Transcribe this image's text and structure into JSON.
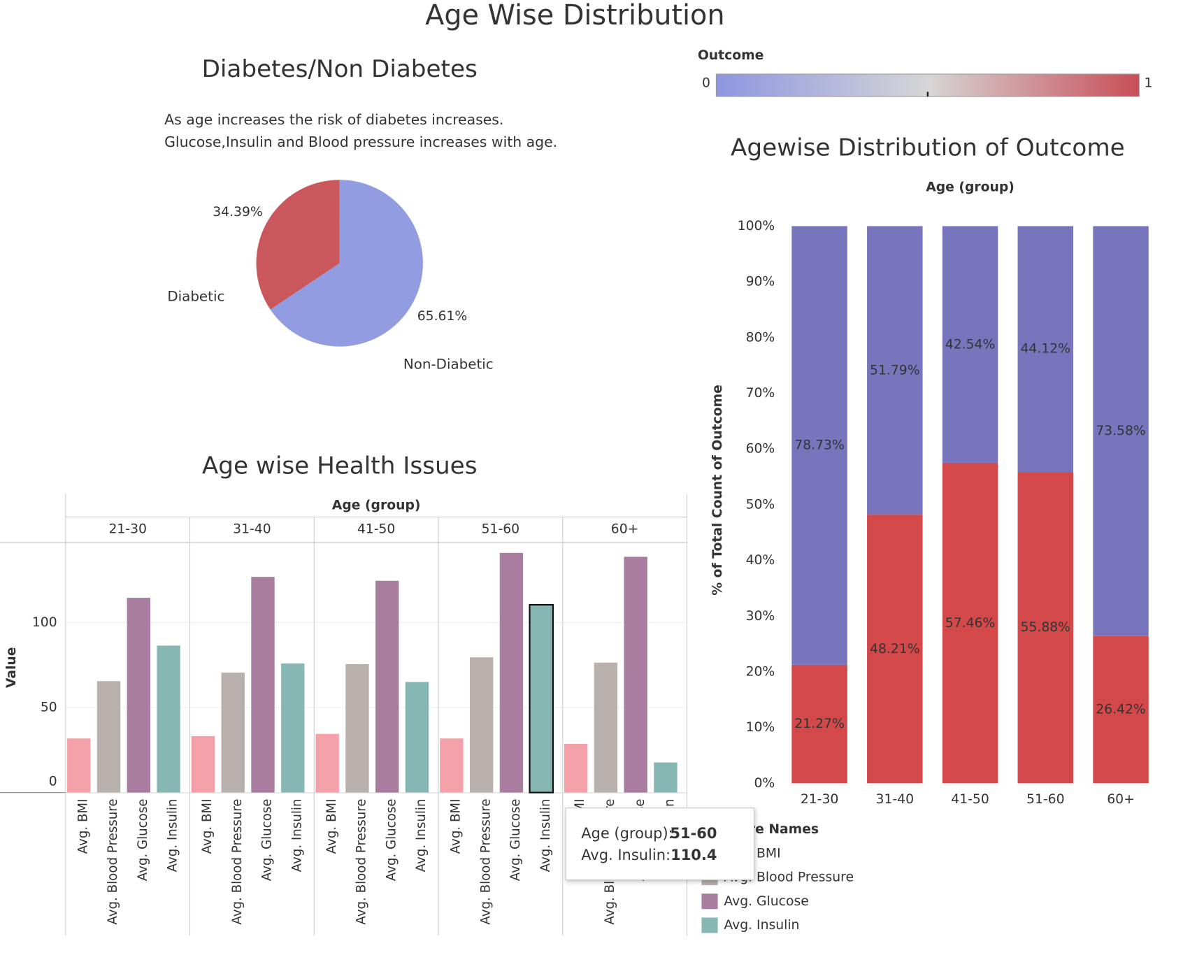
{
  "title": "Age Wise Distribution",
  "color_legend": {
    "title": "Outcome",
    "colors": [
      "#8e96e1",
      "#d6d6d6",
      "#c84e57"
    ]
  },
  "tooltip": {
    "lines": [
      {
        "label": "Age (group):",
        "value": "51-60"
      },
      {
        "label": "Avg. Insulin:",
        "value": "110.4"
      }
    ]
  },
  "chart_data": [
    {
      "type": "pie",
      "title": "Diabetes/Non Diabetes",
      "subtitle": [
        "As age increases the risk of diabetes increases.",
        "Glucose,Insulin and Blood pressure increases with age."
      ],
      "categories": [
        "Non-Diabetic",
        "Diabetic"
      ],
      "values": [
        65.61,
        34.39
      ],
      "value_labels": [
        "65.61%",
        "34.39%"
      ],
      "colors": [
        "#929ce0",
        "#c9575c"
      ]
    },
    {
      "type": "grouped_bar",
      "title": "Age wise Health Issues",
      "header": "Age (group)",
      "ylabel": "Value",
      "categories": [
        "21-30",
        "31-40",
        "41-50",
        "51-60",
        "60+"
      ],
      "series": [
        {
          "name": "Avg. BMI",
          "color": "#f4a0a8",
          "values": [
            31.8,
            33.2,
            34.5,
            31.8,
            28.6
          ]
        },
        {
          "name": "Avg. Blood Pressure",
          "color": "#b8b0ac",
          "values": [
            65.5,
            70.5,
            75.5,
            79.5,
            76.4
          ]
        },
        {
          "name": "Avg. Glucose",
          "color": "#a87d9f",
          "values": [
            114.5,
            126.8,
            124.5,
            140.9,
            138.6
          ]
        },
        {
          "name": "Avg. Insulin",
          "color": "#86b7b2",
          "values": [
            86.4,
            75.9,
            65,
            110.4,
            17.7
          ]
        }
      ],
      "ylim": [
        0,
        147
      ],
      "yticks": [
        0,
        50,
        100
      ],
      "grid": true,
      "legend_title": "Measure Names",
      "selected": {
        "category": "51-60",
        "series": "Avg. Insulin"
      }
    },
    {
      "type": "stacked_bar",
      "title": "Agewise Distribution of Outcome",
      "header": "Age (group)",
      "ylabel": "% of Total Count of Outcome",
      "categories": [
        "21-30",
        "31-40",
        "41-50",
        "51-60",
        "60+"
      ],
      "series": [
        {
          "name": "1",
          "color": "#d34849",
          "values": [
            21.27,
            48.21,
            57.46,
            55.88,
            26.42
          ],
          "value_labels": [
            "21.27%",
            "48.21%",
            "57.46%",
            "55.88%",
            "26.42%"
          ]
        },
        {
          "name": "0",
          "color": "#7875bd",
          "values": [
            78.73,
            51.79,
            42.54,
            44.12,
            73.58
          ],
          "value_labels": [
            "78.73%",
            "51.79%",
            "42.54%",
            "44.12%",
            "73.58%"
          ]
        }
      ],
      "ylim": [
        0,
        100
      ],
      "yticks": [
        {
          "value": 0,
          "label": "0%"
        },
        {
          "value": 10,
          "label": "10%"
        },
        {
          "value": 20,
          "label": "20%"
        },
        {
          "value": 30,
          "label": "30%"
        },
        {
          "value": 40,
          "label": "40%"
        },
        {
          "value": 50,
          "label": "50%"
        },
        {
          "value": 60,
          "label": "60%"
        },
        {
          "value": 70,
          "label": "70%"
        },
        {
          "value": 80,
          "label": "80%"
        },
        {
          "value": 90,
          "label": "90%"
        },
        {
          "value": 100,
          "label": "100%"
        }
      ]
    }
  ]
}
